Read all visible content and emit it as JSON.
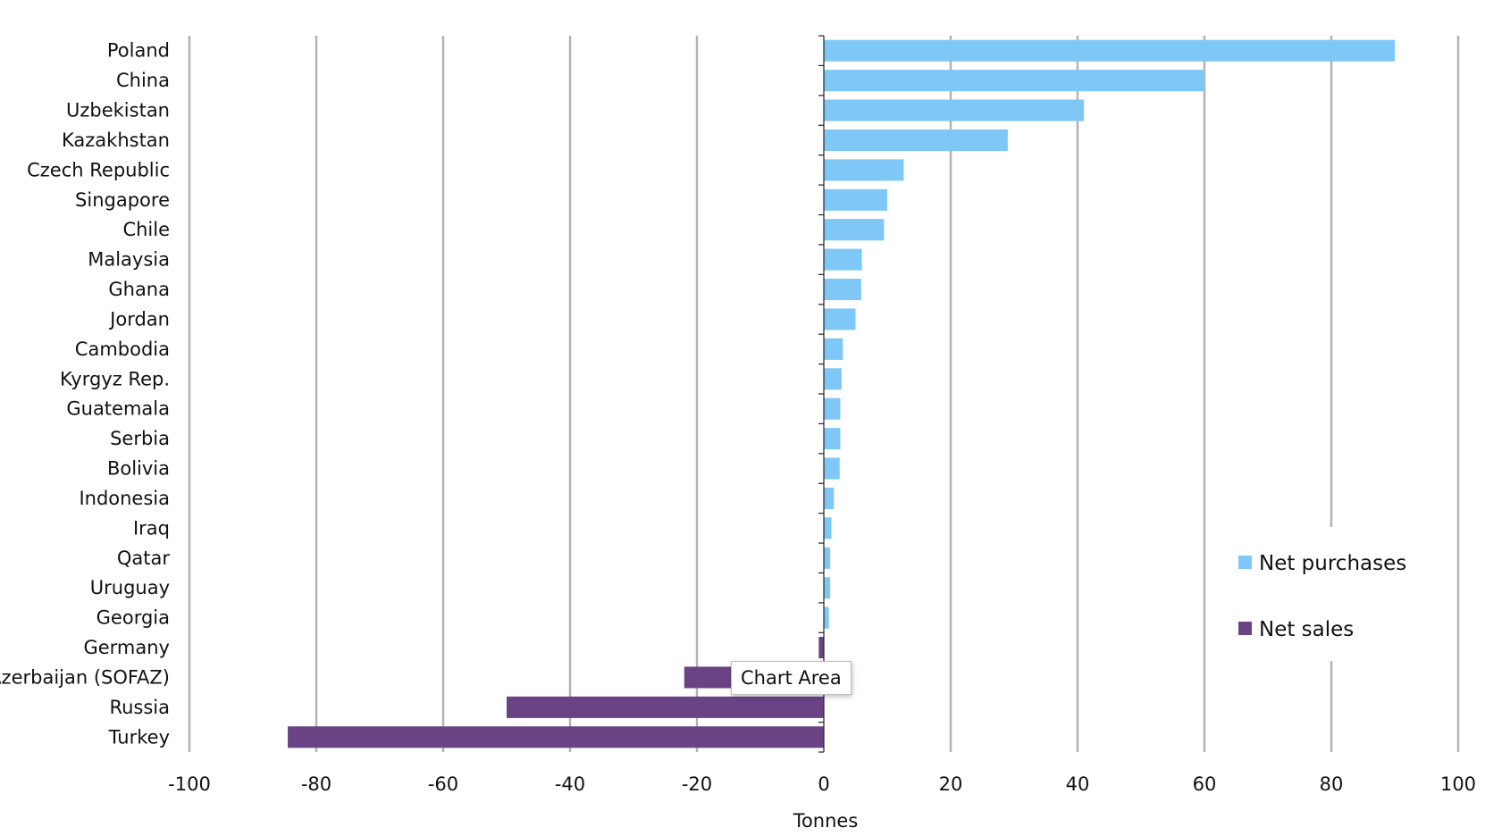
{
  "chart_data": {
    "type": "bar",
    "orientation": "horizontal",
    "xlabel": "Tonnes",
    "xlim": [
      -100,
      100
    ],
    "xticks": [
      -100,
      -80,
      -60,
      -40,
      -20,
      0,
      20,
      40,
      60,
      80,
      100
    ],
    "grid": true,
    "legend_position": "right",
    "categories": [
      "Poland",
      "China",
      "Uzbekistan",
      "Kazakhstan",
      "Czech Republic",
      "Singapore",
      "Chile",
      "Malaysia",
      "Ghana",
      "Jordan",
      "Cambodia",
      "Kyrgyz Rep.",
      "Guatemala",
      "Serbia",
      "Bolivia",
      "Indonesia",
      "Iraq",
      "Qatar",
      "Uruguay",
      "Georgia",
      "Germany",
      "Azerbaijan (SOFAZ)",
      "Russia",
      "Turkey"
    ],
    "values": [
      90,
      60,
      41,
      29,
      12.6,
      10,
      9.5,
      6,
      5.9,
      5,
      3,
      2.8,
      2.6,
      2.6,
      2.5,
      1.6,
      1.2,
      1.0,
      1.0,
      0.8,
      -0.8,
      -22,
      -50,
      -84.5
    ],
    "series": [
      {
        "name": "Net purchases",
        "color": "#7fc7f7"
      },
      {
        "name": "Net sales",
        "color": "#6a4384"
      }
    ]
  },
  "tooltip": {
    "text": "Chart Area"
  }
}
